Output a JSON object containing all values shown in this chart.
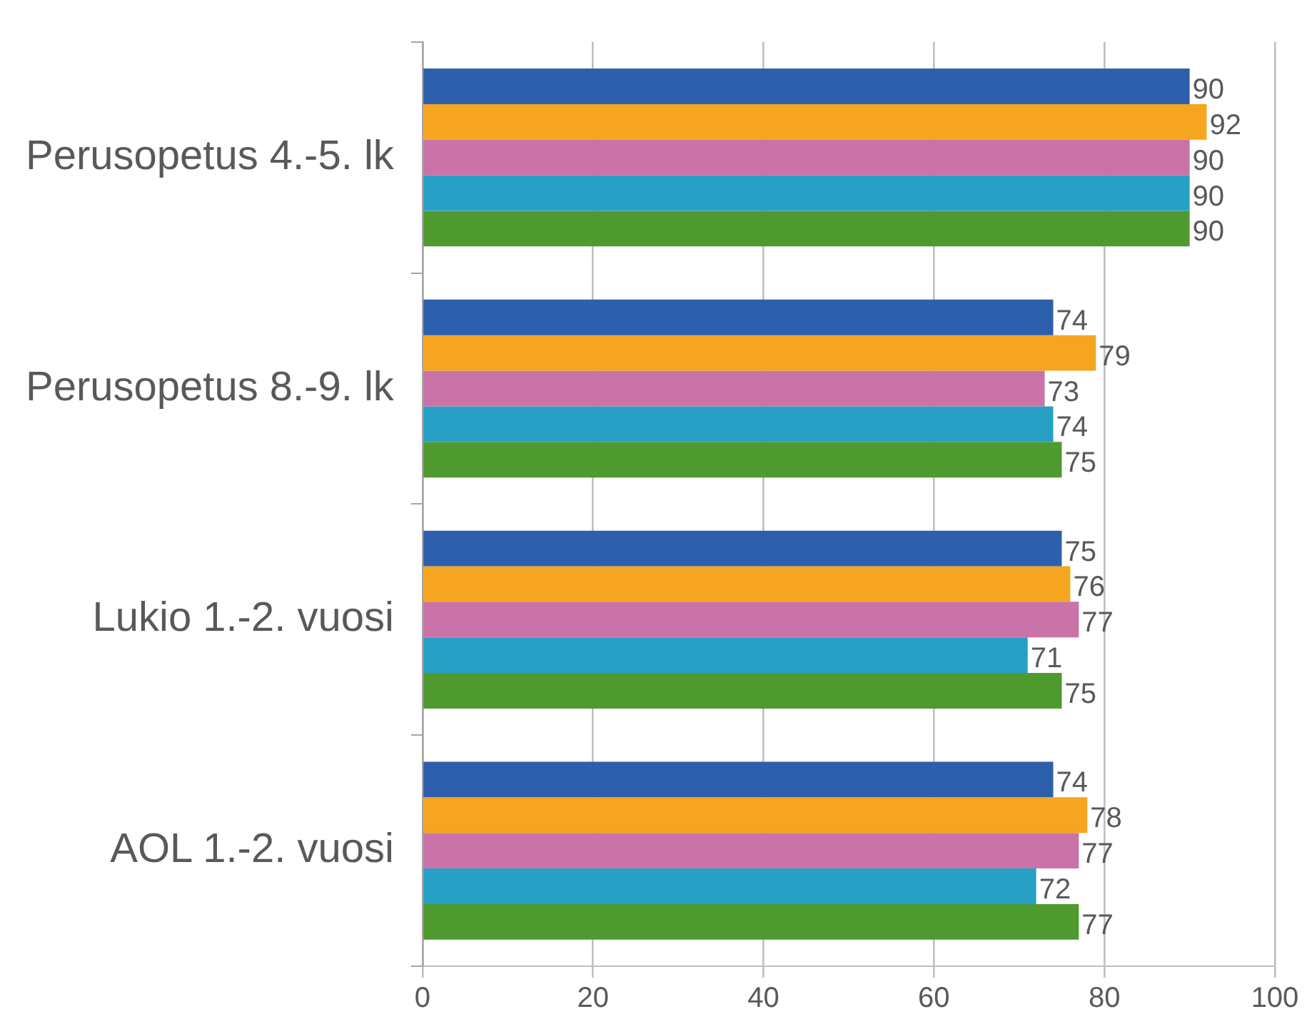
{
  "chart_data": {
    "type": "bar",
    "orientation": "horizontal",
    "categories": [
      "Perusopetus 4.-5. lk",
      "Perusopetus 8.-9. lk",
      "Lukio 1.-2. vuosi",
      "AOL 1.-2. vuosi"
    ],
    "series": [
      {
        "color": "#2e5fac",
        "values": [
          90,
          74,
          75,
          74
        ]
      },
      {
        "color": "#f5a51f",
        "values": [
          92,
          79,
          76,
          78
        ]
      },
      {
        "color": "#c973a8",
        "values": [
          90,
          73,
          77,
          77
        ]
      },
      {
        "color": "#27a0c5",
        "values": [
          90,
          74,
          71,
          72
        ]
      },
      {
        "color": "#4f9a2e",
        "values": [
          90,
          75,
          75,
          77
        ]
      }
    ],
    "xlim": [
      0,
      100
    ],
    "xticks": [
      0,
      20,
      40,
      60,
      80,
      100
    ],
    "grid": "x",
    "legend": false,
    "data_labels": true
  }
}
